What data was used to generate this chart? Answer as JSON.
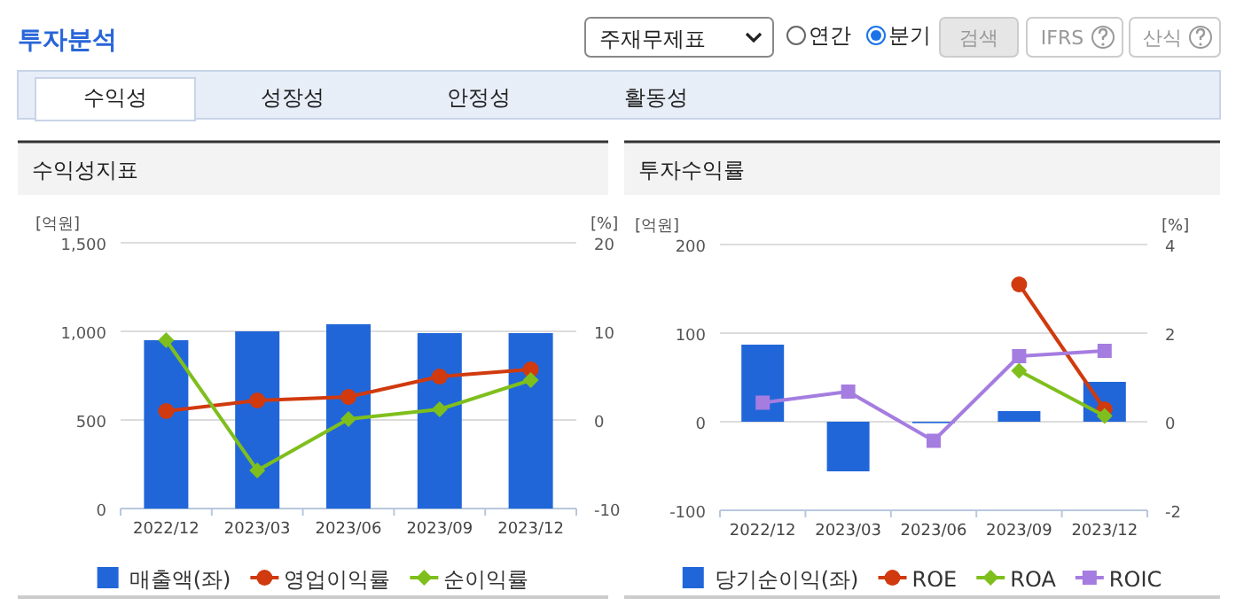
{
  "chart_data": [
    {
      "type": "bar",
      "title": "수익성지표",
      "ylabel": "[억원]",
      "y2label": "[%]",
      "annotations": [
        "투자분석",
        "주재무제표",
        "연간",
        "분기",
        "검색",
        "IFRS",
        "산식",
        "수익성",
        "성장성",
        "안정성",
        "활동성"
      ],
      "categories": [
        "2022/12",
        "2023/03",
        "2023/06",
        "2023/09",
        "2023/12"
      ],
      "series": [
        {
          "name": "매출액(좌)",
          "axis": "y",
          "color": "#2166d9",
          "values": [
            950,
            1000,
            1040,
            990,
            990
          ]
        },
        {
          "name": "영업이익률",
          "type": "line",
          "axis": "y2",
          "color": "#d03a0e",
          "marker": "circle",
          "values": [
            1.0,
            2.2,
            2.6,
            4.9,
            5.7
          ]
        },
        {
          "name": "순이익률",
          "type": "line",
          "axis": "y2",
          "color": "#7fbf1d",
          "marker": "diamond",
          "values": [
            9.0,
            -5.7,
            0.1,
            1.2,
            4.5
          ]
        }
      ],
      "ylim": [
        0,
        1500
      ],
      "yticks": [
        0,
        500,
        {
          "value": 1000,
          "label": "1,000"
        },
        {
          "value": 1500,
          "label": "1,500"
        }
      ],
      "y2lim": [
        -10,
        20
      ],
      "y2ticks": [
        -10,
        0,
        10,
        20
      ],
      "grid": "y",
      "legend": "bottom"
    },
    {
      "type": "bar",
      "title": "투자수익률",
      "ylabel": "[억원]",
      "y2label": "[%]",
      "categories": [
        "2022/12",
        "2023/03",
        "2023/06",
        "2023/09",
        "2023/12"
      ],
      "series": [
        {
          "name": "당기순이익(좌)",
          "axis": "y",
          "color": "#2166d9",
          "values": [
            87,
            -56,
            -1,
            12,
            45
          ]
        },
        {
          "name": "ROE",
          "type": "line",
          "axis": "y2",
          "color": "#d03a0e",
          "marker": "circle",
          "values": [
            null,
            null,
            null,
            3.1,
            0.28
          ]
        },
        {
          "name": "ROA",
          "type": "line",
          "axis": "y2",
          "color": "#7fbf1d",
          "marker": "diamond",
          "values": [
            null,
            null,
            null,
            1.15,
            0.13
          ]
        },
        {
          "name": "ROIC",
          "type": "line",
          "axis": "y2",
          "color": "#a57de0",
          "marker": "square",
          "values": [
            0.43,
            0.68,
            -0.43,
            1.48,
            1.6
          ]
        }
      ],
      "ylim": [
        -100,
        200
      ],
      "yticks": [
        -100,
        0,
        100,
        200
      ],
      "y2lim": [
        -2,
        4
      ],
      "y2ticks": [
        -2,
        0,
        2,
        4
      ],
      "grid": "y",
      "legend": "bottom"
    }
  ]
}
